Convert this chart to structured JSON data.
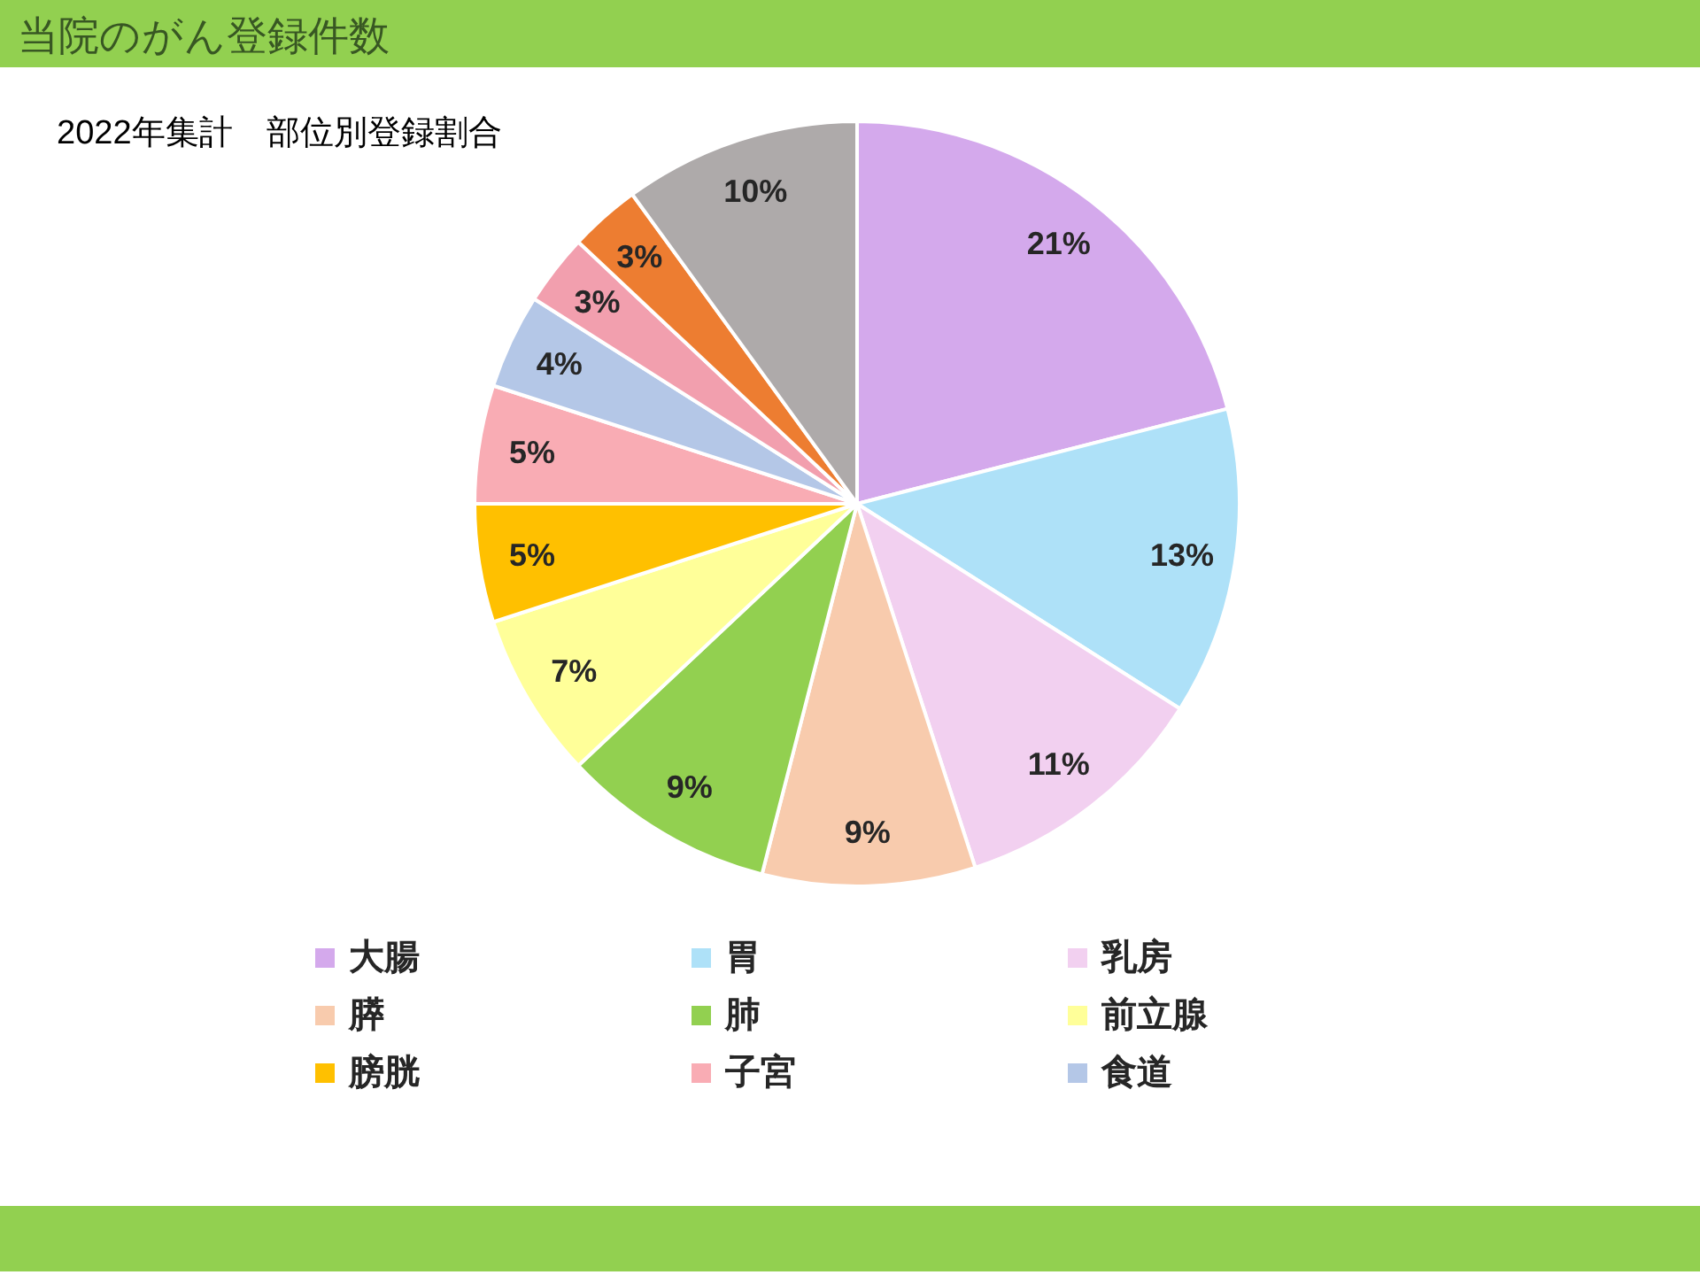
{
  "chart_data": {
    "type": "pie",
    "title": "当院のがん登録件数",
    "subtitle": "2022年集計　部位別登録割合",
    "categories": [
      "大腸",
      "胃",
      "乳房",
      "膵",
      "肺",
      "前立腺",
      "膀胱",
      "子宮",
      "食道",
      null,
      null,
      null
    ],
    "values": [
      21,
      13,
      11,
      9,
      9,
      7,
      5,
      5,
      4,
      3,
      3,
      10
    ],
    "value_labels": [
      "21%",
      "13%",
      "11%",
      "9%",
      "9%",
      "7%",
      "5%",
      "5%",
      "4%",
      "3%",
      "3%",
      "10%"
    ],
    "colors": [
      "#d4a9ec",
      "#aee1f8",
      "#f2d0f0",
      "#f8cbad",
      "#92d050",
      "#ffff99",
      "#ffc000",
      "#f9acb4",
      "#b4c7e7",
      "#f29fae",
      "#ed7d31",
      "#aeaaaa"
    ],
    "legend": "bottom"
  }
}
